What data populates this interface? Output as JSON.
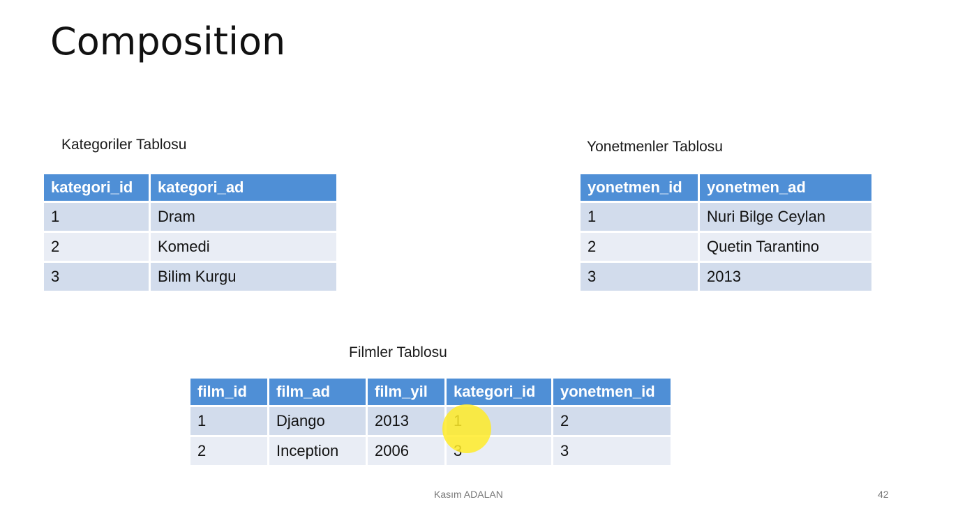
{
  "slide": {
    "title": "Composition",
    "footer_author": "Kasım ADALAN",
    "page_number": "42"
  },
  "kategoriler": {
    "caption": "Kategoriler Tablosu",
    "headers": [
      "kategori_id",
      "kategori_ad"
    ],
    "rows": [
      [
        "1",
        "Dram"
      ],
      [
        "2",
        "Komedi"
      ],
      [
        "3",
        "Bilim Kurgu"
      ]
    ]
  },
  "yonetmenler": {
    "caption": "Yonetmenler Tablosu",
    "headers": [
      "yonetmen_id",
      "yonetmen_ad"
    ],
    "rows": [
      [
        "1",
        "Nuri Bilge Ceylan"
      ],
      [
        "2",
        "Quetin Tarantino"
      ],
      [
        "3",
        "2013"
      ]
    ]
  },
  "filmler": {
    "caption": "Filmler Tablosu",
    "headers": [
      "film_id",
      "film_ad",
      "film_yil",
      "kategori_id",
      "yonetmen_id"
    ],
    "rows": [
      [
        "1",
        "Django",
        "2013",
        "1",
        "2"
      ],
      [
        "2",
        "Inception",
        "2006",
        "3",
        "3"
      ]
    ]
  },
  "colors": {
    "header_bg": "#4f8fd6",
    "row_odd_bg": "#d2dcec",
    "row_even_bg": "#e9edf5",
    "pointer_highlight": "#ffeb28"
  }
}
